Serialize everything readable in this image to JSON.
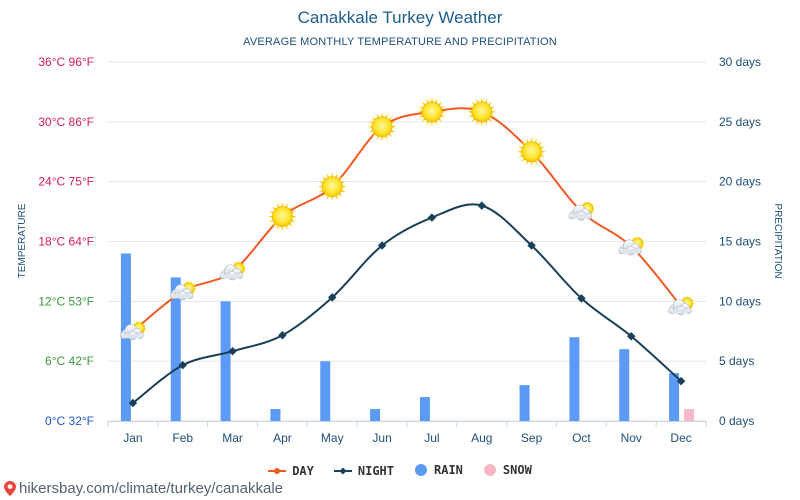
{
  "title": "Canakkale Turkey Weather",
  "subtitle": "AVERAGE MONTHLY TEMPERATURE AND PRECIPITATION",
  "footer": {
    "text": "hikersbay.com/climate/turkey/canakkale",
    "icon": "pin-icon"
  },
  "legend": [
    {
      "label": "DAY",
      "color": "#f15a24",
      "marker": "line-dot"
    },
    {
      "label": "NIGHT",
      "color": "#1a4059",
      "marker": "line-diamond"
    },
    {
      "label": "RAIN",
      "color": "#5b9bf6",
      "marker": "circle"
    },
    {
      "label": "SNOW",
      "color": "#f7b9c6",
      "marker": "circle"
    }
  ],
  "chart_data": {
    "type": "line",
    "categories": [
      "Jan",
      "Feb",
      "Mar",
      "Apr",
      "May",
      "Jun",
      "Jul",
      "Aug",
      "Sep",
      "Oct",
      "Nov",
      "Dec"
    ],
    "series": [
      {
        "name": "DAY",
        "axis": "left",
        "color": "#f15a24",
        "values": [
          9,
          13,
          15,
          20.5,
          23.5,
          29.5,
          31,
          31,
          27,
          21,
          17.5,
          11.5
        ],
        "weather_icons": [
          "sun-cloud-icon",
          "sun-cloud-icon",
          "sun-cloud-icon",
          "sun-icon",
          "sun-icon",
          "sun-icon",
          "sun-icon",
          "sun-icon",
          "sun-icon",
          "sun-cloud-icon",
          "sun-cloud-icon",
          "sun-cloud-icon"
        ]
      },
      {
        "name": "NIGHT",
        "axis": "left",
        "color": "#1a4059",
        "values": [
          1.8,
          5.6,
          7,
          8.6,
          12.4,
          17.6,
          20.4,
          21.6,
          17.6,
          12.3,
          8.5,
          4
        ]
      },
      {
        "name": "RAIN",
        "axis": "right",
        "color": "#5b9bf6",
        "type": "bar",
        "values": [
          14,
          12,
          10,
          1,
          5,
          1,
          2,
          0,
          3,
          7,
          6,
          4
        ]
      },
      {
        "name": "SNOW",
        "axis": "right",
        "color": "#f7b9c6",
        "type": "bar",
        "values": [
          0,
          0,
          0,
          0,
          0,
          0,
          0,
          0,
          0,
          0,
          0,
          1
        ]
      }
    ],
    "ylabel_left": "TEMPERATURE",
    "ylabel_right": "PRECIPITATION",
    "ylim_left": [
      0,
      36
    ],
    "ylim_right": [
      0,
      30
    ],
    "left_ticks": [
      {
        "value": 0,
        "label": "0°C 32°F",
        "color": "#1f57c3"
      },
      {
        "value": 6,
        "label": "6°C 42°F",
        "color": "#3a9a3a"
      },
      {
        "value": 12,
        "label": "12°C 53°F",
        "color": "#3a9a3a"
      },
      {
        "value": 18,
        "label": "18°C 64°F",
        "color": "#d81b60"
      },
      {
        "value": 24,
        "label": "24°C 75°F",
        "color": "#d81b60"
      },
      {
        "value": 30,
        "label": "30°C 86°F",
        "color": "#d81b60"
      },
      {
        "value": 36,
        "label": "36°C 96°F",
        "color": "#d81b60"
      }
    ],
    "right_ticks": [
      {
        "value": 0,
        "label": "0 days"
      },
      {
        "value": 5,
        "label": "5 days"
      },
      {
        "value": 10,
        "label": "10 days"
      },
      {
        "value": 15,
        "label": "15 days"
      },
      {
        "value": 20,
        "label": "20 days"
      },
      {
        "value": 25,
        "label": "25 days"
      },
      {
        "value": 30,
        "label": "30 days"
      }
    ],
    "right_tick_color": "#1e4e79",
    "grid": true,
    "legend_position": "bottom"
  }
}
